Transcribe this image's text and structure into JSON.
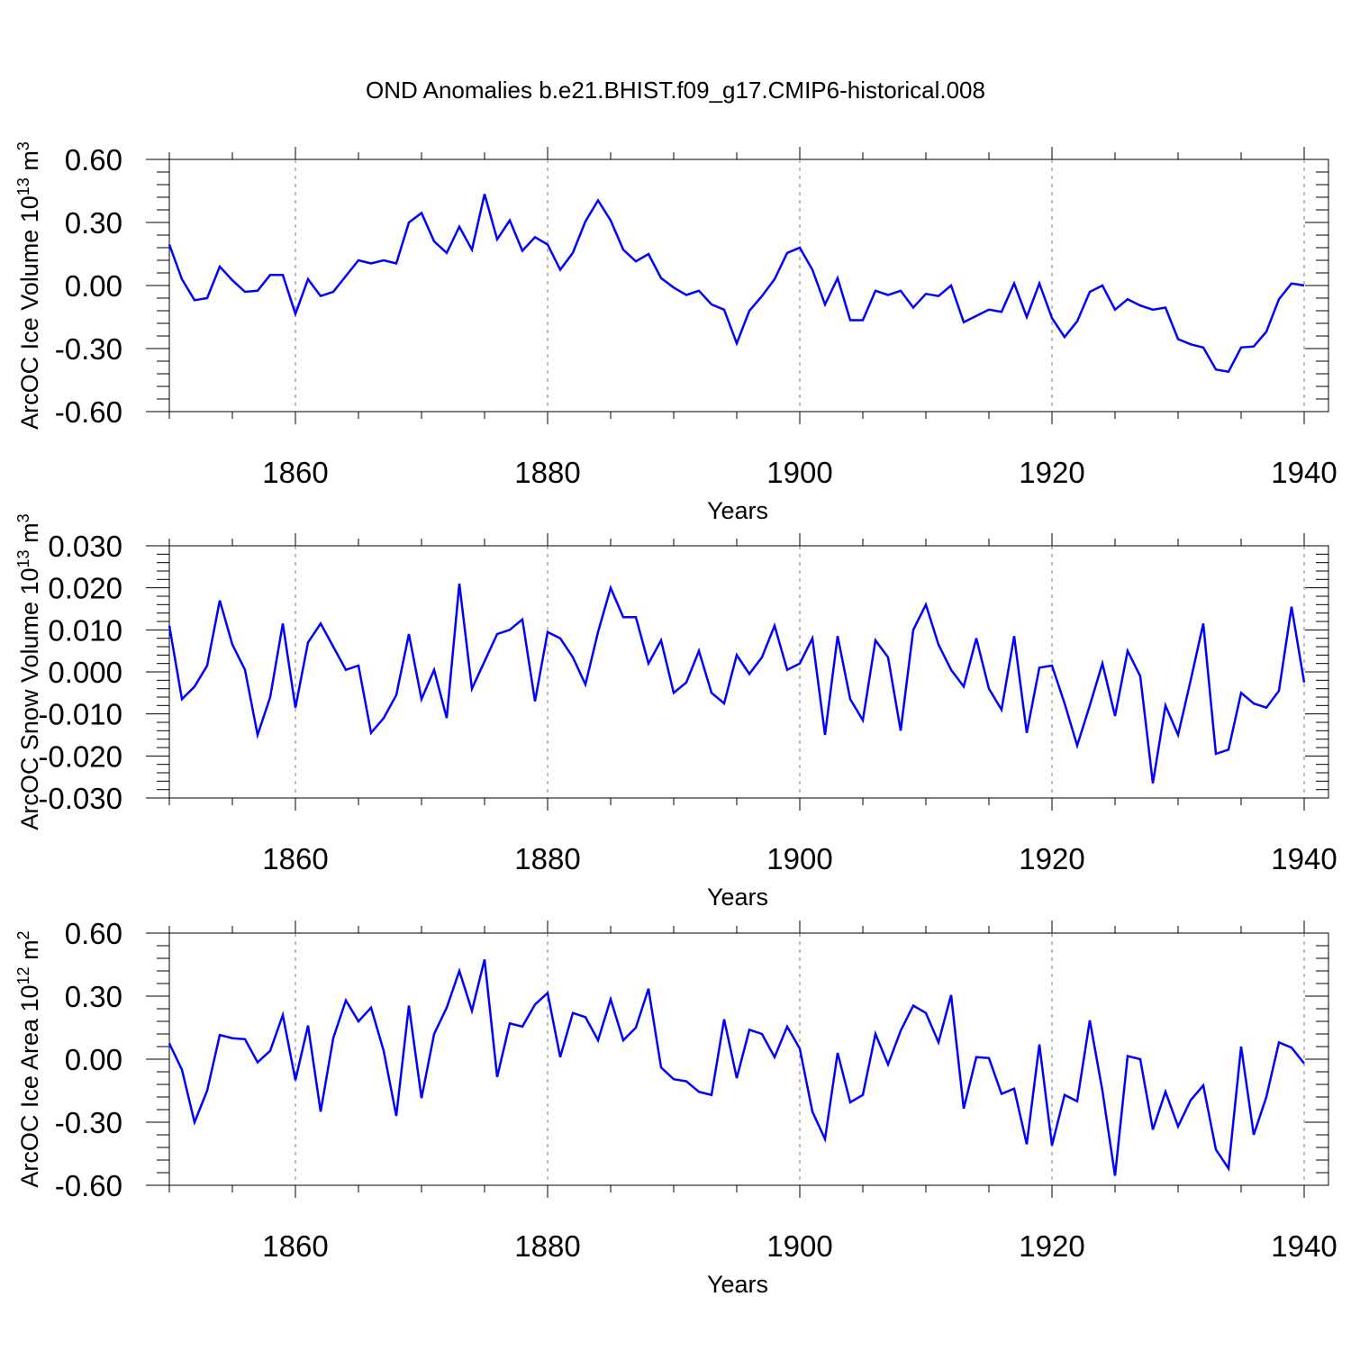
{
  "title": "OND Anomalies b.e21.BHIST.f09_g17.CMIP6-historical.008",
  "line_color": "#0000ff",
  "chart_data": [
    {
      "type": "line",
      "ylabel": "ArcOC Ice Volume 10",
      "ylabel_sup": "13",
      "ylabel_unit": "m",
      "ylabel_unit_sup": "3",
      "xlabel": "Years",
      "xlim": [
        1850,
        1940
      ],
      "ylim": [
        -0.6,
        0.6
      ],
      "yticks": [
        -0.6,
        -0.3,
        0.0,
        0.3,
        0.6
      ],
      "ytick_labels": [
        "-0.60",
        "-0.30",
        "0.00",
        "0.30",
        "0.60"
      ],
      "xticks": [
        1860,
        1880,
        1900,
        1920,
        1940
      ],
      "xtick_labels": [
        "1860",
        "1880",
        "1900",
        "1920",
        "1940"
      ],
      "x_start": 1850,
      "values": [
        0.195,
        0.03,
        -0.07,
        -0.06,
        0.09,
        0.025,
        -0.03,
        -0.025,
        0.05,
        0.05,
        -0.135,
        0.03,
        -0.05,
        -0.03,
        0.045,
        0.12,
        0.105,
        0.12,
        0.105,
        0.3,
        0.345,
        0.21,
        0.155,
        0.28,
        0.17,
        0.435,
        0.22,
        0.31,
        0.165,
        0.23,
        0.195,
        0.075,
        0.155,
        0.305,
        0.405,
        0.31,
        0.17,
        0.115,
        0.15,
        0.035,
        -0.01,
        -0.045,
        -0.025,
        -0.09,
        -0.115,
        -0.275,
        -0.12,
        -0.05,
        0.03,
        0.155,
        0.18,
        0.075,
        -0.09,
        0.035,
        -0.165,
        -0.165,
        -0.025,
        -0.045,
        -0.025,
        -0.105,
        -0.04,
        -0.05,
        0.0,
        -0.175,
        -0.145,
        -0.115,
        -0.125,
        0.01,
        -0.15,
        0.01,
        -0.155,
        -0.245,
        -0.17,
        -0.03,
        -0.0,
        -0.115,
        -0.065,
        -0.095,
        -0.115,
        -0.105,
        -0.255,
        -0.28,
        -0.295,
        -0.4,
        -0.41,
        -0.295,
        -0.29,
        -0.22,
        -0.065,
        0.01,
        -0.0
      ]
    },
    {
      "type": "line",
      "ylabel": "ArcOC Snow Volume 10",
      "ylabel_sup": "13",
      "ylabel_unit": "m",
      "ylabel_unit_sup": "3",
      "xlabel": "Years",
      "xlim": [
        1850,
        1940
      ],
      "ylim": [
        -0.03,
        0.03
      ],
      "yticks": [
        -0.03,
        -0.02,
        -0.01,
        0.0,
        0.01,
        0.02,
        0.03
      ],
      "ytick_labels": [
        "-0.030",
        "-0.020",
        "-0.010",
        "0.000",
        "0.010",
        "0.020",
        "0.030"
      ],
      "xticks": [
        1860,
        1880,
        1900,
        1920,
        1940
      ],
      "xtick_labels": [
        "1860",
        "1880",
        "1900",
        "1920",
        "1940"
      ],
      "x_start": 1850,
      "values": [
        0.011,
        -0.0065,
        -0.0035,
        0.0015,
        0.017,
        0.0065,
        0.0005,
        -0.015,
        -0.006,
        0.0115,
        -0.0085,
        0.007,
        0.0115,
        0.006,
        0.0005,
        0.0015,
        -0.0145,
        -0.011,
        -0.0055,
        0.009,
        -0.0065,
        0.0005,
        -0.011,
        0.021,
        -0.004,
        0.0025,
        0.009,
        0.01,
        0.0125,
        -0.007,
        0.0095,
        0.008,
        0.0035,
        -0.003,
        0.0095,
        0.02,
        0.013,
        0.013,
        0.002,
        0.0075,
        -0.005,
        -0.0025,
        0.005,
        -0.005,
        -0.0075,
        0.004,
        -0.0005,
        0.0035,
        0.011,
        0.0005,
        0.002,
        0.008,
        -0.015,
        0.0085,
        -0.0065,
        -0.0115,
        0.0075,
        0.0035,
        -0.014,
        0.01,
        0.016,
        0.0065,
        0.0005,
        -0.0035,
        0.008,
        -0.004,
        -0.009,
        0.0085,
        -0.0145,
        0.001,
        0.0015,
        -0.0075,
        -0.0175,
        -0.008,
        0.002,
        -0.0105,
        0.005,
        -0.001,
        -0.0265,
        -0.008,
        -0.015,
        -0.002,
        0.0115,
        -0.0195,
        -0.0185,
        -0.005,
        -0.0075,
        -0.0085,
        -0.0045,
        0.0155,
        -0.0025
      ]
    },
    {
      "type": "line",
      "ylabel": "ArcOC Ice Area 10",
      "ylabel_sup": "12",
      "ylabel_unit": "m",
      "ylabel_unit_sup": "2",
      "xlabel": "Years",
      "xlim": [
        1850,
        1940
      ],
      "ylim": [
        -0.6,
        0.6
      ],
      "yticks": [
        -0.6,
        -0.3,
        0.0,
        0.3,
        0.6
      ],
      "ytick_labels": [
        "-0.60",
        "-0.30",
        "0.00",
        "0.30",
        "0.60"
      ],
      "xticks": [
        1860,
        1880,
        1900,
        1920,
        1940
      ],
      "xtick_labels": [
        "1860",
        "1880",
        "1900",
        "1920",
        "1940"
      ],
      "x_start": 1850,
      "values": [
        0.075,
        -0.05,
        -0.3,
        -0.15,
        0.115,
        0.1,
        0.095,
        -0.015,
        0.04,
        0.21,
        -0.1,
        0.16,
        -0.25,
        0.1,
        0.28,
        0.18,
        0.245,
        0.04,
        -0.27,
        0.255,
        -0.185,
        0.12,
        0.245,
        0.42,
        0.23,
        0.475,
        -0.085,
        0.17,
        0.155,
        0.26,
        0.315,
        0.01,
        0.22,
        0.2,
        0.09,
        0.285,
        0.09,
        0.15,
        0.335,
        -0.04,
        -0.095,
        -0.105,
        -0.155,
        -0.17,
        0.19,
        -0.09,
        0.14,
        0.12,
        0.01,
        0.155,
        0.05,
        -0.25,
        -0.38,
        0.03,
        -0.205,
        -0.17,
        0.12,
        -0.025,
        0.135,
        0.255,
        0.22,
        0.08,
        0.305,
        -0.235,
        0.01,
        0.005,
        -0.165,
        -0.14,
        -0.405,
        0.07,
        -0.41,
        -0.17,
        -0.2,
        0.185,
        -0.15,
        -0.555,
        0.015,
        0.0,
        -0.335,
        -0.155,
        -0.32,
        -0.195,
        -0.125,
        -0.43,
        -0.52,
        0.06,
        -0.36,
        -0.18,
        0.08,
        0.055,
        -0.02
      ]
    }
  ]
}
